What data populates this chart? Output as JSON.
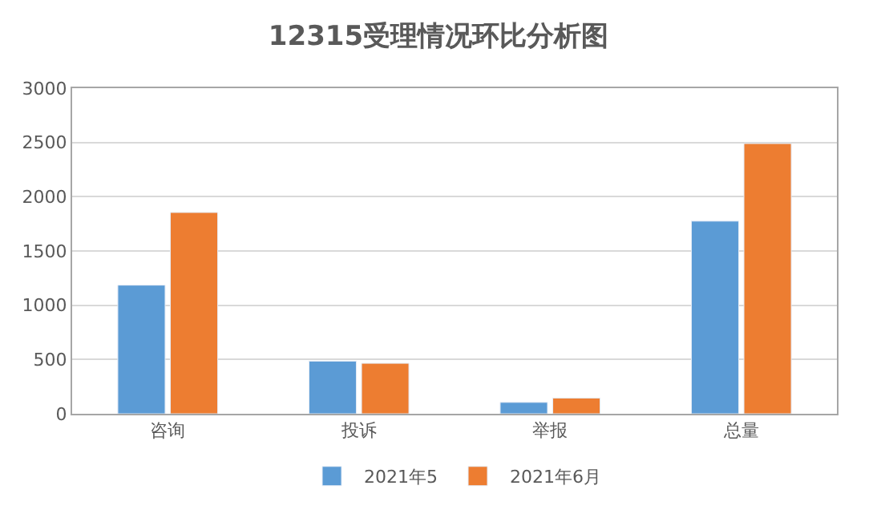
{
  "chart_data": {
    "type": "bar",
    "title": "12315受理情况环比分析图",
    "categories": [
      "咨询",
      "投诉",
      "举报",
      "总量"
    ],
    "series": [
      {
        "name": "2021年5",
        "color": "#5b9bd5",
        "values": [
          1185,
          485,
          105,
          1775
        ]
      },
      {
        "name": "2021年6月",
        "color": "#ed7d31",
        "values": [
          1855,
          465,
          145,
          2490
        ]
      }
    ],
    "ylim": [
      0,
      3000
    ],
    "yticks": [
      0,
      500,
      1000,
      1500,
      2000,
      2500,
      3000
    ],
    "grid": "y",
    "legend": "bottom"
  }
}
